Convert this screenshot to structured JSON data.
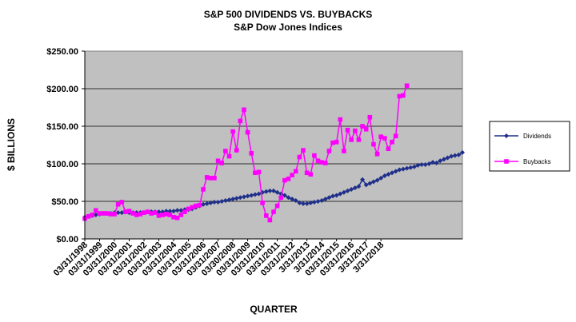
{
  "chart_data": {
    "type": "line",
    "title": "S&P 500 DIVIDENDS VS. BUYBACKS",
    "subtitle": "S&P Dow Jones Indices",
    "xlabel": "QUARTER",
    "ylabel": "$ BILLIONS",
    "ylim": [
      0,
      250
    ],
    "yticks": [
      0,
      50,
      100,
      150,
      200,
      250
    ],
    "ytick_labels": [
      "$0.00",
      "$50.00",
      "$100.00",
      "$150.00",
      "$200.00",
      "$250.00"
    ],
    "xtick_labels": [
      "03/31/1998",
      "03/31/1999",
      "03/31/2000",
      "03/31/2001",
      "03/31/2002",
      "03/31/2003",
      "03/31/2004",
      "03/31/2005",
      "03/31/2006",
      "03/31/2007",
      "03/30/2008",
      "03/31/2009",
      "03/31/2010",
      "03/31/2011",
      "03/31/2012",
      "3/31/2013",
      "3/31/2014",
      "03/31/2015",
      "03/31/2016",
      "3/31/2017",
      "3/31/2018"
    ],
    "x_start": "1998-Q1",
    "grid": true,
    "legend_position": "right",
    "plot_background": "#c0c0c0",
    "series": [
      {
        "name": "Dividends",
        "color": "#1f2f8a",
        "marker": "diamond",
        "values": [
          29,
          30,
          31,
          32,
          33,
          34,
          34,
          34,
          35,
          35,
          35,
          36,
          35,
          35,
          35,
          35,
          35,
          36,
          36,
          36,
          36,
          36,
          37,
          37,
          37,
          38,
          38,
          39,
          39,
          40,
          42,
          44,
          46,
          47,
          48,
          49,
          49,
          50,
          51,
          52,
          53,
          54,
          55,
          56,
          57,
          58,
          59,
          60,
          62,
          63,
          64,
          64,
          62,
          60,
          58,
          55,
          53,
          51,
          48,
          47,
          47,
          48,
          49,
          50,
          51,
          53,
          55,
          57,
          58,
          60,
          62,
          64,
          66,
          68,
          70,
          79,
          72,
          74,
          76,
          78,
          81,
          84,
          86,
          88,
          90,
          92,
          93,
          94,
          95,
          96,
          98,
          99,
          99,
          100,
          102,
          101,
          104,
          106,
          108,
          110,
          111,
          112,
          115
        ]
      },
      {
        "name": "Buybacks",
        "color": "#ff00ff",
        "marker": "square",
        "values": [
          27,
          30,
          32,
          38,
          34,
          34,
          34,
          33,
          33,
          46,
          49,
          36,
          37,
          34,
          32,
          33,
          35,
          36,
          34,
          35,
          31,
          32,
          33,
          32,
          29,
          28,
          32,
          36,
          40,
          42,
          44,
          45,
          66,
          82,
          81,
          81,
          104,
          101,
          117,
          110,
          143,
          118,
          157,
          172,
          142,
          114,
          88,
          89,
          48,
          31,
          25,
          36,
          44,
          55,
          78,
          80,
          85,
          90,
          109,
          118,
          88,
          86,
          111,
          104,
          102,
          101,
          117,
          128,
          129,
          159,
          117,
          145,
          132,
          144,
          132,
          150,
          146,
          162,
          126,
          113,
          136,
          134,
          120,
          129,
          137,
          190,
          191,
          204
        ]
      }
    ]
  }
}
